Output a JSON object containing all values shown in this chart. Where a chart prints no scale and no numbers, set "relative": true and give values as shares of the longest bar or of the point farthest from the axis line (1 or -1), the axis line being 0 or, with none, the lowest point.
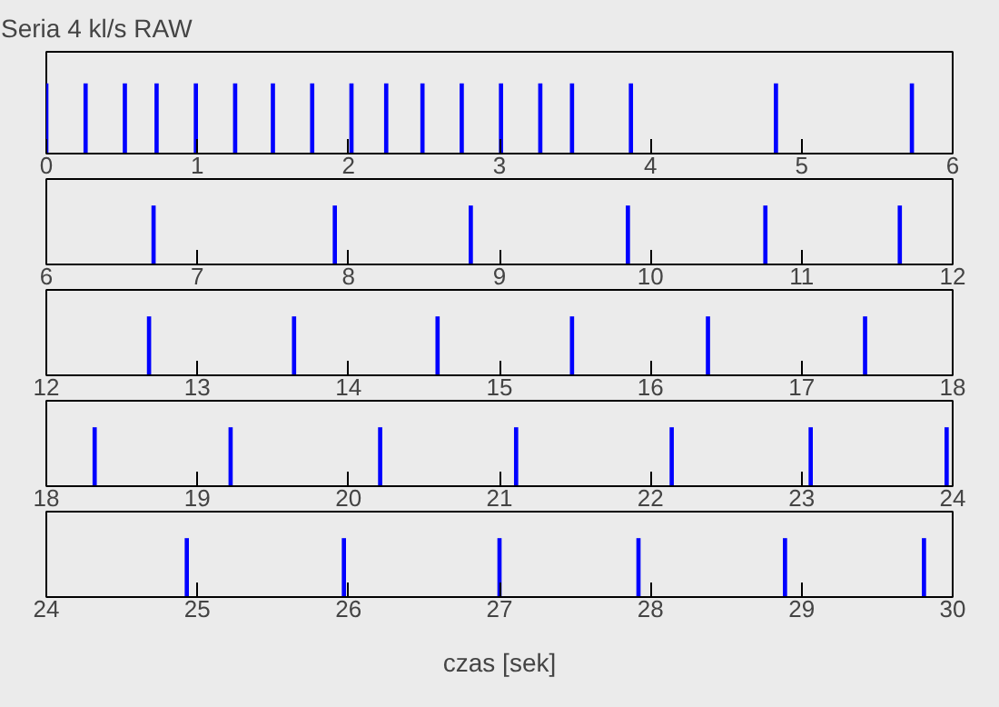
{
  "chart_data": [
    {
      "type": "bar",
      "title": "Seria 4 kl/s RAW",
      "relative": true,
      "color": "#0000ff",
      "xlim": [
        0,
        6
      ],
      "xticks": [
        0,
        1,
        2,
        3,
        4,
        5,
        6
      ],
      "x": [
        0.0,
        0.26,
        0.52,
        0.73,
        0.99,
        1.25,
        1.5,
        1.76,
        2.02,
        2.25,
        2.49,
        2.75,
        3.01,
        3.27,
        3.48,
        3.87,
        4.83,
        5.73
      ],
      "values": [
        1,
        1,
        1,
        1,
        1,
        1,
        1,
        1,
        1,
        1,
        1,
        1,
        1,
        1,
        1,
        1,
        1,
        1
      ]
    },
    {
      "type": "bar",
      "relative": true,
      "color": "#0000ff",
      "xlim": [
        6,
        12
      ],
      "xticks": [
        6,
        7,
        8,
        9,
        10,
        11,
        12
      ],
      "x": [
        6.71,
        7.91,
        8.81,
        9.85,
        10.76,
        11.65
      ],
      "values": [
        1,
        1,
        1,
        1,
        1,
        1
      ]
    },
    {
      "type": "bar",
      "relative": true,
      "color": "#0000ff",
      "xlim": [
        12,
        18
      ],
      "xticks": [
        12,
        13,
        14,
        15,
        16,
        17,
        18
      ],
      "x": [
        12.68,
        13.64,
        14.59,
        15.48,
        16.38,
        17.42
      ],
      "values": [
        1,
        1,
        1,
        1,
        1,
        1
      ]
    },
    {
      "type": "bar",
      "relative": true,
      "color": "#0000ff",
      "xlim": [
        18,
        24
      ],
      "xticks": [
        18,
        19,
        20,
        21,
        22,
        23,
        24
      ],
      "x": [
        18.32,
        19.22,
        20.21,
        21.11,
        22.14,
        23.06,
        23.96
      ],
      "values": [
        1,
        1,
        1,
        1,
        1,
        1,
        1
      ]
    },
    {
      "type": "bar",
      "relative": true,
      "color": "#0000ff",
      "xlim": [
        24,
        30
      ],
      "xticks": [
        24,
        25,
        26,
        27,
        28,
        29,
        30
      ],
      "xlabel": "czas [sek]",
      "x": [
        24.93,
        25.97,
        27.0,
        27.92,
        28.89,
        29.81
      ],
      "values": [
        1,
        1,
        1,
        1,
        1,
        1
      ]
    }
  ]
}
